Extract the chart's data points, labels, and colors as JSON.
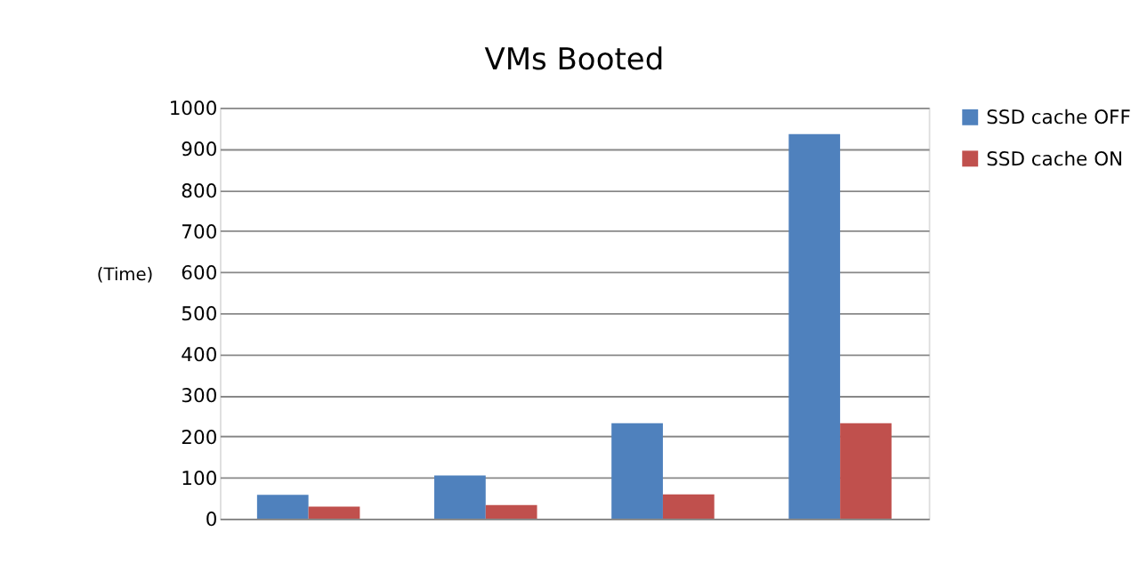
{
  "chart_data": {
    "type": "bar",
    "title": "VMs Booted",
    "ylabel": "(Time)",
    "categories": [
      null,
      null,
      null,
      null
    ],
    "series": [
      {
        "name": "SSD cache OFF",
        "color": "#4f81bd",
        "values": [
          58,
          105,
          232,
          936
        ]
      },
      {
        "name": "SSD cache ON",
        "color": "#c0504d",
        "values": [
          29,
          33,
          59,
          232
        ]
      }
    ],
    "ylim": [
      0,
      1000
    ],
    "yticks": [
      0,
      100,
      200,
      300,
      400,
      500,
      600,
      700,
      800,
      900,
      1000
    ],
    "grid": "y",
    "legend": "right"
  }
}
